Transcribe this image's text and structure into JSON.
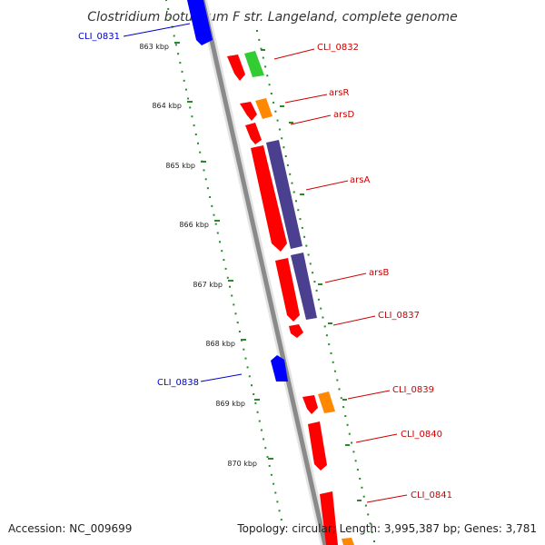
{
  "title": "Clostridium botulinum F str. Langeland, complete genome",
  "footer": {
    "accession": "Accession: NC_009699",
    "topology": "Topology: circular; Length: 3,995,387 bp; Genes: 3,781"
  },
  "colors": {
    "backbone": "#8a8a8a",
    "tick": "#2a8a2a",
    "forward_label": "#cc0000",
    "reverse_label": "#0000cc",
    "cds": "#ff0000",
    "rrna": "#33cc33",
    "trna": "#ff8800",
    "blue_gene": "#0000ff",
    "ars_block": "#4b3f8f"
  },
  "scale": {
    "ticks": [
      "863 kbp",
      "864 kbp",
      "865 kbp",
      "866 kbp",
      "867 kbp",
      "868 kbp",
      "869 kbp",
      "870 kbp"
    ]
  },
  "labels": [
    {
      "name": "CLI_0831",
      "strand": "reverse"
    },
    {
      "name": "CLI_0832",
      "strand": "forward"
    },
    {
      "name": "arsR",
      "strand": "forward"
    },
    {
      "name": "arsD",
      "strand": "forward"
    },
    {
      "name": "arsA",
      "strand": "forward"
    },
    {
      "name": "arsB",
      "strand": "forward"
    },
    {
      "name": "CLI_0837",
      "strand": "forward"
    },
    {
      "name": "CLI_0838",
      "strand": "reverse"
    },
    {
      "name": "CLI_0839",
      "strand": "forward"
    },
    {
      "name": "CLI_0840",
      "strand": "forward"
    },
    {
      "name": "CLI_0841",
      "strand": "forward"
    }
  ]
}
